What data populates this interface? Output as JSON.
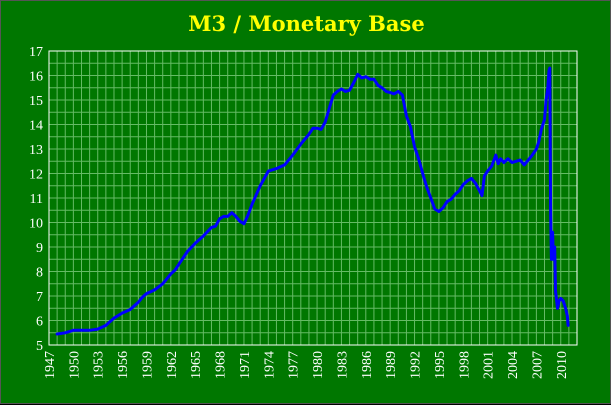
{
  "chart_data": {
    "type": "line",
    "title": "M3 / Monetary Base",
    "xlabel": "",
    "ylabel": "",
    "xlim": [
      1947,
      2012
    ],
    "ylim": [
      5,
      17
    ],
    "grid": true,
    "x_ticks": [
      "1947",
      "1950",
      "1953",
      "1956",
      "1959",
      "1962",
      "1965",
      "1968",
      "1971",
      "1974",
      "1977",
      "1980",
      "1983",
      "1986",
      "1989",
      "1992",
      "1995",
      "1998",
      "2001",
      "2004",
      "2007",
      "2010"
    ],
    "y_ticks": [
      "5",
      "6",
      "7",
      "8",
      "9",
      "10",
      "11",
      "12",
      "13",
      "14",
      "15",
      "16",
      "17"
    ],
    "colors": {
      "background": "#007700",
      "grid": "#66bb66",
      "line": "#0000ff",
      "title": "#ffff00",
      "text": "#ffffff"
    },
    "series": [
      {
        "x": [
          1948.0,
          1949.0,
          1950.0,
          1951.0,
          1952.0,
          1953.0,
          1954.0,
          1954.5,
          1955.0,
          1955.5,
          1956.0,
          1957.0,
          1958.0,
          1958.5,
          1959.0,
          1960.0,
          1961.0,
          1962.0,
          1962.5,
          1963.0,
          1964.0,
          1965.0,
          1966.0,
          1967.0,
          1967.5,
          1968.0,
          1968.5,
          1969.0,
          1969.5,
          1970.0,
          1970.5,
          1971.0,
          1971.5,
          1972.0,
          1973.0,
          1974.0,
          1975.0,
          1976.0,
          1977.0,
          1978.0,
          1979.0,
          1979.5,
          1980.0,
          1980.5,
          1981.0,
          1981.5,
          1982.0,
          1982.5,
          1983.0,
          1983.5,
          1984.0,
          1984.5,
          1985.0,
          1985.5,
          1986.0,
          1986.5,
          1987.0,
          1987.5,
          1988.0,
          1988.5,
          1989.0,
          1989.5,
          1990.0,
          1990.5,
          1991.0,
          1991.5,
          1992.0,
          1992.5,
          1993.0,
          1993.5,
          1994.0,
          1994.5,
          1995.0,
          1995.5,
          1996.0,
          1996.5,
          1997.0,
          1997.5,
          1998.0,
          1998.5,
          1999.0,
          1999.5,
          2000.0,
          2000.3,
          2000.6,
          2001.0,
          2001.5,
          2002.0,
          2002.3,
          2002.6,
          2003.0,
          2003.5,
          2004.0,
          2004.5,
          2005.0,
          2005.5,
          2006.0,
          2006.5,
          2007.0,
          2007.3,
          2007.6,
          2008.0,
          2008.2,
          2008.4,
          2008.55,
          2008.65,
          2008.75,
          2008.85,
          2009.0,
          2009.1,
          2009.25,
          2009.35,
          2009.5,
          2009.6,
          2009.8,
          2010.0,
          2010.3,
          2010.6,
          2010.8,
          2010.9
        ],
        "y": [
          5.45,
          5.5,
          5.6,
          5.6,
          5.6,
          5.65,
          5.8,
          5.95,
          6.1,
          6.2,
          6.3,
          6.45,
          6.75,
          6.95,
          7.1,
          7.25,
          7.5,
          7.9,
          8.05,
          8.3,
          8.8,
          9.15,
          9.45,
          9.8,
          9.85,
          10.15,
          10.25,
          10.25,
          10.4,
          10.25,
          10.05,
          9.95,
          10.3,
          10.75,
          11.5,
          12.1,
          12.2,
          12.35,
          12.75,
          13.2,
          13.6,
          13.85,
          13.85,
          13.8,
          14.1,
          14.65,
          15.2,
          15.35,
          15.45,
          15.35,
          15.4,
          15.7,
          16.05,
          15.9,
          15.95,
          15.85,
          15.85,
          15.6,
          15.5,
          15.35,
          15.3,
          15.25,
          15.35,
          15.2,
          14.35,
          13.9,
          13.1,
          12.6,
          12.0,
          11.45,
          11.0,
          10.55,
          10.45,
          10.6,
          10.85,
          10.95,
          11.15,
          11.3,
          11.55,
          11.7,
          11.8,
          11.6,
          11.3,
          11.1,
          11.9,
          12.1,
          12.3,
          12.75,
          12.4,
          12.6,
          12.45,
          12.6,
          12.45,
          12.5,
          12.55,
          12.35,
          12.55,
          12.75,
          13.0,
          13.3,
          13.8,
          14.2,
          15.0,
          15.5,
          16.2,
          16.3,
          10.5,
          8.5,
          9.6,
          8.5,
          9.0,
          7.2,
          6.8,
          6.5,
          6.8,
          6.9,
          6.8,
          6.5,
          6.2,
          5.8
        ]
      }
    ]
  }
}
